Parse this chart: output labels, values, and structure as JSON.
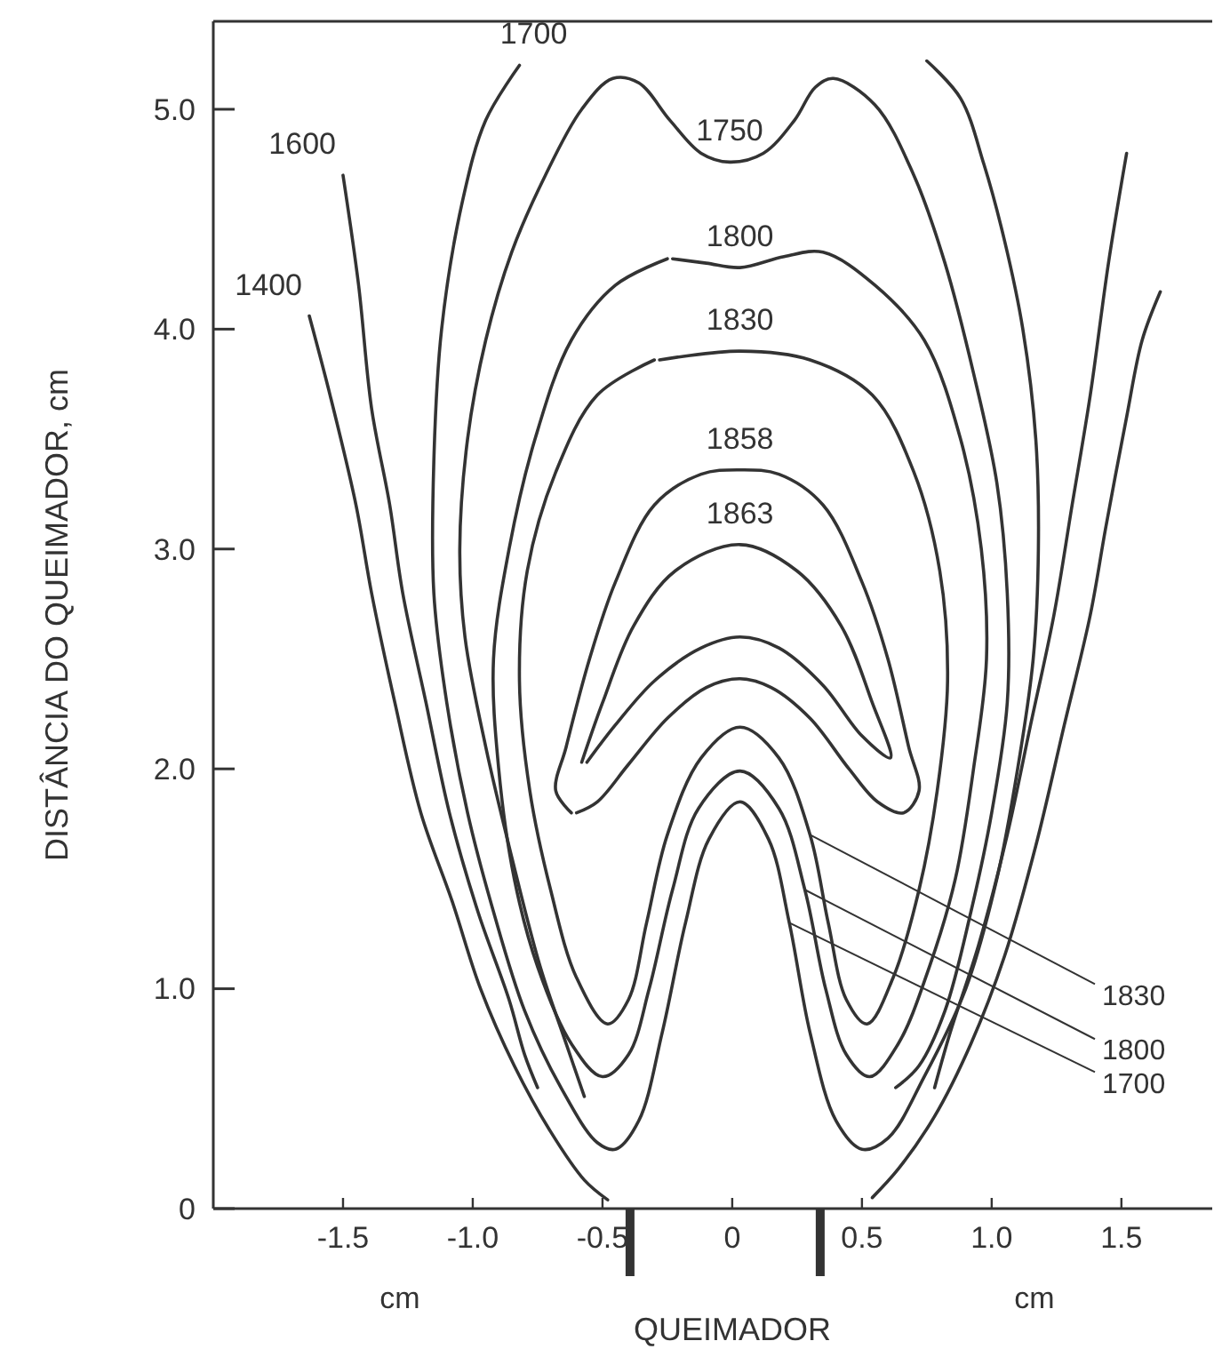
{
  "chart_data": {
    "type": "line",
    "xlabel": "QUEIMADOR",
    "ylabel": "DISTÂNCIA DO QUEIMADOR, cm",
    "xlim": [
      -2.0,
      1.85
    ],
    "ylim": [
      0,
      5.4
    ],
    "xticks": [
      -1.5,
      {
        "value": -1,
        "label": "-1.0"
      },
      -0.5,
      0,
      0.5,
      {
        "value": 1,
        "label": "1.0"
      },
      1.5
    ],
    "yticks": [
      0,
      {
        "value": 1,
        "label": "1.0"
      },
      {
        "value": 2,
        "label": "2.0"
      },
      {
        "value": 3,
        "label": "3.0"
      },
      {
        "value": 4,
        "label": "4.0"
      },
      {
        "value": 5,
        "label": "5.0"
      }
    ],
    "annotations": [
      "cm",
      "cm"
    ],
    "series": [
      {
        "name": "1400",
        "color": "#333333",
        "x": [
          -1.63,
          -1.55,
          -1.45,
          -1.39,
          -1.3,
          -1.2,
          -1.08,
          -0.97,
          -0.84,
          -0.7,
          -0.57,
          -0.48,
          null,
          0.54,
          0.64,
          0.78,
          0.92,
          1.05,
          1.17,
          1.28,
          1.38,
          1.44,
          1.52,
          1.58,
          1.65
        ],
        "values": [
          4.06,
          3.7,
          3.2,
          2.8,
          2.3,
          1.8,
          1.4,
          1.0,
          0.65,
          0.35,
          0.13,
          0.04,
          null,
          0.05,
          0.18,
          0.42,
          0.75,
          1.15,
          1.65,
          2.2,
          2.7,
          3.1,
          3.6,
          3.95,
          4.17
        ]
      },
      {
        "name": "1600",
        "color": "#333333",
        "x": [
          -1.5,
          -1.44,
          -1.39,
          -1.32,
          -1.27,
          -1.18,
          -1.09,
          -0.98,
          -0.86,
          -0.8,
          -0.75,
          null,
          0.78,
          0.84,
          0.95,
          1.06,
          1.15,
          1.24,
          1.31,
          1.38,
          1.45,
          1.52
        ],
        "values": [
          4.7,
          4.2,
          3.64,
          3.2,
          2.8,
          2.3,
          1.8,
          1.35,
          0.95,
          0.7,
          0.55,
          null,
          0.55,
          0.8,
          1.2,
          1.7,
          2.2,
          2.7,
          3.2,
          3.7,
          4.3,
          4.8
        ]
      },
      {
        "name": "1700",
        "color": "#333333",
        "x": [
          -0.82,
          -0.95,
          -1.04,
          -1.12,
          -1.15,
          -1.15,
          -1.1,
          -1.02,
          -0.92,
          -0.8,
          -0.66,
          -0.52,
          -0.45,
          -0.36,
          -0.27,
          -0.18,
          -0.09,
          0.03,
          0.14,
          0.22,
          0.3,
          0.4,
          0.5,
          0.6,
          0.74,
          0.9,
          1.02,
          1.1,
          1.16,
          1.18,
          1.17,
          1.12,
          1.05,
          0.97,
          0.88,
          0.75
        ],
        "values": [
          5.2,
          4.95,
          4.58,
          4.0,
          3.4,
          2.8,
          2.3,
          1.8,
          1.35,
          0.9,
          0.55,
          0.3,
          0.27,
          0.4,
          0.8,
          1.3,
          1.68,
          1.85,
          1.68,
          1.3,
          0.8,
          0.4,
          0.27,
          0.32,
          0.6,
          1.0,
          1.5,
          2.0,
          2.5,
          3.0,
          3.5,
          4.0,
          4.4,
          4.75,
          5.05,
          5.22
        ]
      },
      {
        "name": "1750",
        "color": "#333333",
        "x": [
          -0.57,
          -0.64,
          -0.74,
          -0.85,
          -0.95,
          -1.03,
          -1.05,
          -1.02,
          -0.95,
          -0.85,
          -0.72,
          -0.58,
          -0.46,
          -0.36,
          -0.24,
          -0.12,
          -0.01,
          0.12,
          0.24,
          0.32,
          0.39,
          0.55,
          0.7,
          0.82,
          0.93,
          1.02,
          1.06,
          1.06,
          1.0,
          0.92,
          0.82,
          0.72,
          0.63
        ],
        "values": [
          0.51,
          0.75,
          1.1,
          1.6,
          2.1,
          2.6,
          3.0,
          3.5,
          3.95,
          4.35,
          4.7,
          5.0,
          5.14,
          5.12,
          4.95,
          4.8,
          4.76,
          4.8,
          4.95,
          5.1,
          5.14,
          5.02,
          4.7,
          4.3,
          3.8,
          3.3,
          2.8,
          2.3,
          1.8,
          1.35,
          0.9,
          0.65,
          0.55
        ]
      },
      {
        "name": "1800",
        "color": "#333333",
        "x": [
          -0.25,
          -0.45,
          -0.62,
          -0.76,
          -0.86,
          -0.92,
          -0.9,
          -0.84,
          -0.75,
          -0.62,
          -0.5,
          -0.4,
          -0.32,
          -0.23,
          -0.13,
          0.03,
          0.18,
          0.28,
          0.36,
          0.44,
          0.53,
          0.64,
          0.76,
          0.86,
          0.93,
          0.98,
          0.96,
          0.88,
          0.74,
          0.55,
          0.35,
          0.2,
          0.03,
          -0.1,
          -0.23
        ],
        "values": [
          4.32,
          4.2,
          3.95,
          3.5,
          3.0,
          2.5,
          2.0,
          1.5,
          1.1,
          0.75,
          0.6,
          0.7,
          1.0,
          1.45,
          1.82,
          1.99,
          1.82,
          1.45,
          1.0,
          0.7,
          0.6,
          0.75,
          1.1,
          1.5,
          2.0,
          2.5,
          3.0,
          3.5,
          3.95,
          4.2,
          4.35,
          4.33,
          4.28,
          4.3,
          4.32
        ]
      },
      {
        "name": "1830",
        "color": "#333333",
        "x": [
          -0.3,
          -0.52,
          -0.68,
          -0.79,
          -0.82,
          -0.78,
          -0.7,
          -0.6,
          -0.48,
          -0.4,
          -0.33,
          -0.25,
          -0.12,
          0.03,
          0.18,
          0.3,
          0.37,
          0.44,
          0.52,
          0.62,
          0.72,
          0.79,
          0.83,
          0.8,
          0.7,
          0.54,
          0.3,
          0.03,
          -0.28
        ],
        "values": [
          3.86,
          3.7,
          3.35,
          2.9,
          2.4,
          1.9,
          1.45,
          1.05,
          0.84,
          0.95,
          1.3,
          1.7,
          2.05,
          2.19,
          2.05,
          1.7,
          1.3,
          0.95,
          0.84,
          1.05,
          1.45,
          1.9,
          2.4,
          2.9,
          3.35,
          3.7,
          3.86,
          3.9,
          3.86
        ]
      },
      {
        "name": "1858",
        "color": "#333333",
        "x": [
          -0.62,
          -0.68,
          -0.64,
          -0.55,
          -0.45,
          -0.3,
          -0.12,
          0.03,
          0.18,
          0.35,
          0.5,
          0.6,
          0.68,
          0.72,
          0.66,
          0.56,
          0.45,
          0.3,
          0.15,
          0.03,
          -0.1,
          -0.25,
          -0.4,
          -0.52,
          -0.6
        ],
        "values": [
          1.8,
          1.9,
          2.1,
          2.5,
          2.85,
          3.2,
          3.34,
          3.36,
          3.34,
          3.2,
          2.85,
          2.5,
          2.1,
          1.9,
          1.8,
          1.85,
          2.0,
          2.23,
          2.37,
          2.41,
          2.37,
          2.23,
          2.02,
          1.85,
          1.8
        ]
      },
      {
        "name": "1863",
        "color": "#333333",
        "x": [
          -0.58,
          -0.5,
          -0.38,
          -0.22,
          0.03,
          0.25,
          0.42,
          0.54,
          0.61,
          0.5,
          0.35,
          0.18,
          0.03,
          -0.12,
          -0.3,
          -0.45,
          -0.56
        ],
        "values": [
          2.03,
          2.3,
          2.65,
          2.9,
          3.02,
          2.9,
          2.65,
          2.3,
          2.05,
          2.15,
          2.38,
          2.55,
          2.6,
          2.55,
          2.4,
          2.2,
          2.03
        ]
      }
    ]
  }
}
